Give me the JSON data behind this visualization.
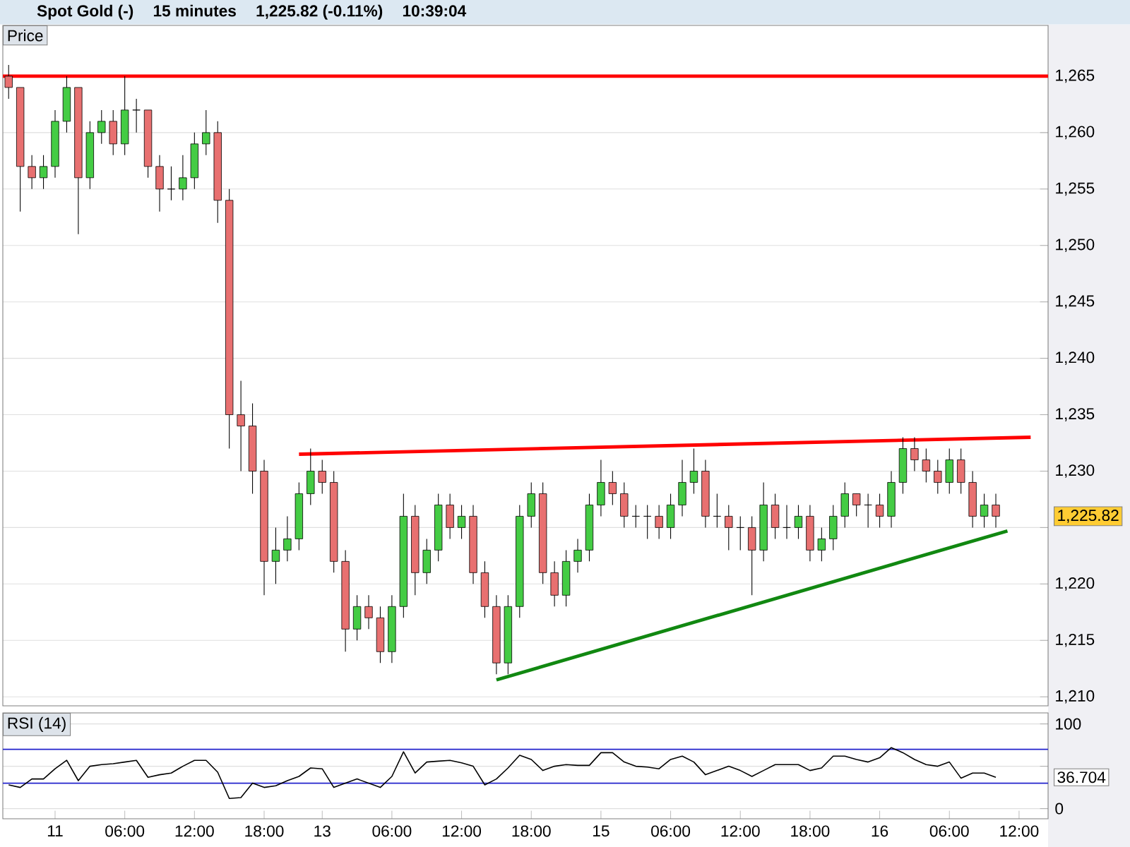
{
  "chart_data": [
    {
      "type": "candlestick",
      "title": "Spot Gold (-)",
      "subtitle": "15 minutes",
      "ylabel": "Price",
      "annotations": [
        "1,225.82 (-0.11%)",
        "10:39:04",
        "1,225.82"
      ],
      "categories": [
        null,
        null,
        null,
        null,
        null,
        null,
        null,
        null,
        null,
        null,
        null,
        null,
        null,
        null,
        null,
        null,
        null,
        null,
        null,
        null,
        null,
        null,
        null,
        null,
        null,
        null,
        null,
        null,
        null,
        null,
        null,
        null,
        null,
        null,
        null,
        null,
        null,
        null,
        null,
        null,
        null,
        null,
        null,
        null,
        null,
        null,
        null,
        null,
        null,
        null,
        null,
        null,
        null,
        null,
        null,
        null,
        null,
        null,
        null,
        null,
        null,
        null,
        null,
        null,
        null,
        null,
        null,
        null,
        null,
        null,
        null,
        null,
        null,
        null,
        null,
        null,
        null,
        null,
        null,
        null,
        null,
        null,
        null,
        null,
        null,
        null,
        null,
        null,
        null,
        null
      ],
      "ohlc": [
        [
          1265,
          1266,
          1263,
          1264
        ],
        [
          1264,
          1264,
          1253,
          1257
        ],
        [
          1257,
          1258,
          1255,
          1256
        ],
        [
          1256,
          1258,
          1255,
          1257
        ],
        [
          1257,
          1262,
          1256,
          1261
        ],
        [
          1261,
          1265,
          1260,
          1264
        ],
        [
          1264,
          1264,
          1251,
          1256
        ],
        [
          1256,
          1261,
          1255,
          1260
        ],
        [
          1260,
          1262,
          1259,
          1261
        ],
        [
          1261,
          1262,
          1258,
          1259
        ],
        [
          1259,
          1265,
          1258,
          1262
        ],
        [
          1262,
          1263,
          1260,
          1262
        ],
        [
          1262,
          1262,
          1256,
          1257
        ],
        [
          1257,
          1258,
          1253,
          1255
        ],
        [
          1255,
          1257,
          1254,
          1255
        ],
        [
          1255,
          1258,
          1254,
          1256
        ],
        [
          1256,
          1260,
          1255,
          1259
        ],
        [
          1259,
          1262,
          1258,
          1260
        ],
        [
          1260,
          1261,
          1252,
          1254
        ],
        [
          1254,
          1255,
          1232,
          1235
        ],
        [
          1235,
          1238,
          1230,
          1234
        ],
        [
          1234,
          1236,
          1228,
          1230
        ],
        [
          1230,
          1231,
          1219,
          1222
        ],
        [
          1222,
          1225,
          1220,
          1223
        ],
        [
          1223,
          1226,
          1222,
          1224
        ],
        [
          1224,
          1229,
          1223,
          1228
        ],
        [
          1228,
          1232,
          1227,
          1230
        ],
        [
          1230,
          1231,
          1228,
          1229
        ],
        [
          1229,
          1230,
          1221,
          1222
        ],
        [
          1222,
          1223,
          1214,
          1216
        ],
        [
          1216,
          1219,
          1215,
          1218
        ],
        [
          1218,
          1219,
          1216,
          1217
        ],
        [
          1217,
          1218,
          1213,
          1214
        ],
        [
          1214,
          1219,
          1213,
          1218
        ],
        [
          1218,
          1228,
          1217,
          1226
        ],
        [
          1226,
          1227,
          1219,
          1221
        ],
        [
          1221,
          1224,
          1220,
          1223
        ],
        [
          1223,
          1228,
          1222,
          1227
        ],
        [
          1227,
          1228,
          1224,
          1225
        ],
        [
          1225,
          1227,
          1224,
          1226
        ],
        [
          1226,
          1227,
          1220,
          1221
        ],
        [
          1221,
          1222,
          1217,
          1218
        ],
        [
          1218,
          1219,
          1212,
          1213
        ],
        [
          1213,
          1219,
          1212,
          1218
        ],
        [
          1218,
          1227,
          1217,
          1226
        ],
        [
          1226,
          1229,
          1225,
          1228
        ],
        [
          1228,
          1229,
          1220,
          1221
        ],
        [
          1221,
          1222,
          1218,
          1219
        ],
        [
          1219,
          1223,
          1218,
          1222
        ],
        [
          1222,
          1224,
          1221,
          1223
        ],
        [
          1223,
          1228,
          1222,
          1227
        ],
        [
          1227,
          1231,
          1226,
          1229
        ],
        [
          1229,
          1230,
          1227,
          1228
        ],
        [
          1228,
          1229,
          1225,
          1226
        ],
        [
          1226,
          1227,
          1225,
          1226
        ],
        [
          1226,
          1227,
          1224,
          1226
        ],
        [
          1226,
          1227,
          1224,
          1225
        ],
        [
          1225,
          1228,
          1224,
          1227
        ],
        [
          1227,
          1231,
          1226,
          1229
        ],
        [
          1229,
          1232,
          1228,
          1230
        ],
        [
          1230,
          1231,
          1225,
          1226
        ],
        [
          1226,
          1228,
          1225,
          1226
        ],
        [
          1226,
          1227,
          1223,
          1225
        ],
        [
          1225,
          1226,
          1223,
          1225
        ],
        [
          1225,
          1226,
          1219,
          1223
        ],
        [
          1223,
          1229,
          1222,
          1227
        ],
        [
          1227,
          1228,
          1224,
          1225
        ],
        [
          1225,
          1227,
          1224,
          1225
        ],
        [
          1225,
          1227,
          1224,
          1226
        ],
        [
          1226,
          1227,
          1222,
          1223
        ],
        [
          1223,
          1225,
          1222,
          1224
        ],
        [
          1224,
          1227,
          1223,
          1226
        ],
        [
          1226,
          1229,
          1225,
          1228
        ],
        [
          1228,
          1228,
          1226,
          1227
        ],
        [
          1227,
          1228,
          1225,
          1227
        ],
        [
          1227,
          1228,
          1225,
          1226
        ],
        [
          1226,
          1230,
          1225,
          1229
        ],
        [
          1229,
          1233,
          1228,
          1232
        ],
        [
          1232,
          1233,
          1230,
          1231
        ],
        [
          1231,
          1232,
          1229,
          1230
        ],
        [
          1230,
          1231,
          1228,
          1229
        ],
        [
          1229,
          1232,
          1228,
          1231
        ],
        [
          1231,
          1232,
          1228,
          1229
        ],
        [
          1229,
          1230,
          1225,
          1226
        ],
        [
          1226,
          1228,
          1225,
          1227
        ],
        [
          1227,
          1228,
          1225,
          1226
        ],
        null,
        null,
        null,
        null
      ],
      "series": [
        {
          "type": "line",
          "color": "#ff0000",
          "values": [
            null,
            null,
            null,
            null,
            null,
            null,
            null,
            null,
            null,
            null,
            null,
            null,
            null,
            null,
            null,
            null,
            null,
            null,
            null,
            null,
            null,
            null,
            null,
            null,
            null,
            1231.5,
            null,
            null,
            null,
            null,
            null,
            null,
            null,
            null,
            null,
            null,
            null,
            null,
            null,
            null,
            null,
            null,
            null,
            null,
            null,
            null,
            null,
            null,
            null,
            null,
            null,
            null,
            null,
            null,
            null,
            null,
            null,
            null,
            null,
            null,
            null,
            null,
            null,
            null,
            null,
            null,
            null,
            null,
            null,
            null,
            null,
            null,
            null,
            null,
            null,
            null,
            null,
            null,
            null,
            null,
            null,
            null,
            null,
            null,
            null,
            null,
            null,
            null,
            1233,
            null
          ]
        },
        {
          "type": "line",
          "color": "#118811",
          "values": [
            null,
            null,
            null,
            null,
            null,
            null,
            null,
            null,
            null,
            null,
            null,
            null,
            null,
            null,
            null,
            null,
            null,
            null,
            null,
            null,
            null,
            null,
            null,
            null,
            null,
            null,
            null,
            null,
            null,
            null,
            null,
            null,
            null,
            null,
            null,
            null,
            null,
            null,
            null,
            null,
            null,
            null,
            1211.5,
            null,
            null,
            null,
            null,
            null,
            null,
            null,
            null,
            null,
            null,
            null,
            null,
            null,
            null,
            null,
            null,
            null,
            null,
            null,
            null,
            null,
            null,
            null,
            null,
            null,
            null,
            null,
            null,
            null,
            null,
            null,
            null,
            null,
            null,
            null,
            null,
            null,
            null,
            null,
            null,
            null,
            null,
            null,
            1224.7,
            null,
            null,
            null
          ]
        }
      ],
      "ylim": [
        1209.2,
        1269.5
      ],
      "yticks": [
        {
          "value": 1210,
          "label": "1,210"
        },
        {
          "value": 1215,
          "label": "1,215"
        },
        {
          "value": 1220,
          "label": "1,220"
        },
        {
          "value": 1225,
          "label": null
        },
        {
          "value": 1230,
          "label": "1,230"
        },
        {
          "value": 1235,
          "label": "1,235"
        },
        {
          "value": 1240,
          "label": "1,240"
        },
        {
          "value": 1245,
          "label": "1,245"
        },
        {
          "value": 1250,
          "label": "1,250"
        },
        {
          "value": 1255,
          "label": "1,255"
        },
        {
          "value": 1260,
          "label": "1,260"
        },
        {
          "value": 1265,
          "label": "1,265"
        }
      ],
      "ref_lines": [
        {
          "axis": "y",
          "value": 1265,
          "color": "#ff0000"
        }
      ],
      "grid": "y",
      "tick_labels": "y"
    },
    {
      "type": "line",
      "ylabel": "RSI (14)",
      "annotations": [
        "36.704"
      ],
      "categories": [
        null,
        null,
        null,
        null,
        "11",
        null,
        null,
        null,
        null,
        null,
        "06:00",
        null,
        null,
        null,
        null,
        null,
        "12:00",
        null,
        null,
        null,
        null,
        null,
        "18:00",
        null,
        null,
        null,
        null,
        "13",
        null,
        null,
        null,
        null,
        null,
        "06:00",
        null,
        null,
        null,
        null,
        null,
        "12:00",
        null,
        null,
        null,
        null,
        null,
        "18:00",
        null,
        null,
        null,
        null,
        null,
        "15",
        null,
        null,
        null,
        null,
        null,
        "06:00",
        null,
        null,
        null,
        null,
        null,
        "12:00",
        null,
        null,
        null,
        null,
        null,
        "18:00",
        null,
        null,
        null,
        null,
        null,
        "16",
        null,
        null,
        null,
        null,
        null,
        "06:00",
        null,
        null,
        null,
        null,
        null,
        "12:00",
        null,
        null
      ],
      "series": [
        {
          "color": "#000000",
          "values": [
            28,
            25,
            35,
            35,
            47,
            57,
            33,
            50,
            52,
            53,
            55,
            57,
            37,
            40,
            42,
            50,
            57,
            57,
            43,
            12,
            13,
            30,
            25,
            27,
            33,
            38,
            48,
            47,
            25,
            30,
            35,
            30,
            25,
            38,
            67,
            42,
            55,
            56,
            57,
            54,
            50,
            28,
            35,
            48,
            63,
            58,
            45,
            50,
            52,
            51,
            51,
            66,
            66,
            55,
            50,
            49,
            47,
            58,
            62,
            55,
            40,
            45,
            50,
            45,
            38,
            45,
            52,
            52,
            52,
            45,
            48,
            62,
            62,
            58,
            55,
            60,
            72,
            66,
            58,
            52,
            50,
            55,
            36,
            42,
            42,
            37,
            null,
            null,
            null,
            null
          ]
        }
      ],
      "ylim": [
        -12,
        113
      ],
      "yticks": [
        0,
        {
          "value": 50,
          "label": null
        },
        100
      ],
      "ref_lines": [
        {
          "axis": "y",
          "value": 30,
          "color": "#2222cc"
        },
        {
          "axis": "y",
          "value": 70,
          "color": "#2222cc"
        }
      ],
      "grid": "y"
    }
  ]
}
